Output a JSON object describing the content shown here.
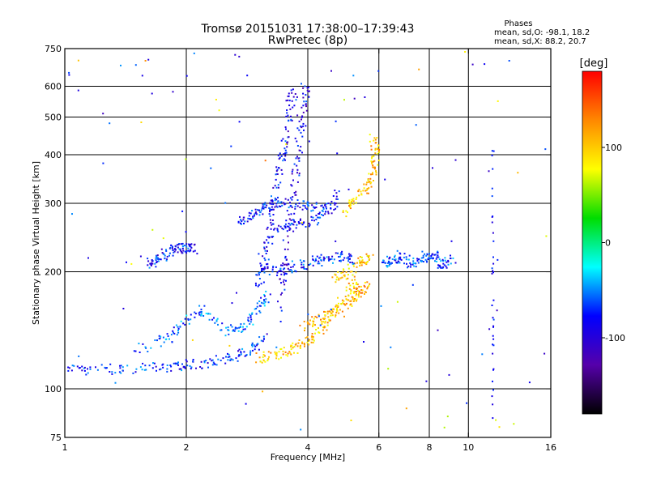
{
  "title": "Tromsø 20151031 17:38:00–17:39:43",
  "subtitle": "RwPretec (8p)",
  "stats": {
    "heading": "Phases",
    "line_o": "mean, sd,O: -98.1, 18.2",
    "line_x": "mean, sd,X:  88.2, 20.7"
  },
  "colorbar": {
    "unit": "[deg]",
    "range": [
      -180,
      180
    ],
    "ticks": [
      {
        "value": 100,
        "label": "100"
      },
      {
        "value": 0,
        "label": "0"
      },
      {
        "value": -100,
        "label": "-100"
      }
    ],
    "stops": [
      "#ff0000",
      "#ff8800",
      "#ffff00",
      "#00dd00",
      "#00ffff",
      "#0000ff",
      "#5500aa",
      "#000000"
    ]
  },
  "chart_data": {
    "type": "scatter",
    "xlabel": "Frequency [MHz]",
    "ylabel": "Stationary phase Virtual Height [km]",
    "xscale": "log",
    "yscale": "log",
    "xlim": [
      1,
      16
    ],
    "ylim": [
      75,
      750
    ],
    "grid": true,
    "x_ticks": [
      {
        "value": 1,
        "label": "1"
      },
      {
        "value": 2,
        "label": "2"
      },
      {
        "value": 4,
        "label": "4"
      },
      {
        "value": 6,
        "label": "6"
      },
      {
        "value": 8,
        "label": "8"
      },
      {
        "value": 10,
        "label": "10"
      },
      {
        "value": 16,
        "label": "16"
      }
    ],
    "x_grid": [
      2,
      4,
      6,
      8,
      10
    ],
    "y_ticks": [
      {
        "value": 75,
        "label": "75"
      },
      {
        "value": 100,
        "label": "100"
      },
      {
        "value": 200,
        "label": "200"
      },
      {
        "value": 300,
        "label": "300"
      },
      {
        "value": 400,
        "label": "400"
      },
      {
        "value": 500,
        "label": "500"
      },
      {
        "value": 600,
        "label": "600"
      },
      {
        "value": 750,
        "label": "750"
      }
    ],
    "y_grid": [
      100,
      200,
      300,
      400,
      500,
      600
    ],
    "traces": [
      {
        "points": [
          [
            1.0,
            112
          ],
          [
            1.2,
            112
          ],
          [
            1.5,
            113
          ],
          [
            1.8,
            114
          ],
          [
            2.0,
            115
          ],
          [
            2.3,
            117
          ],
          [
            2.6,
            120
          ],
          [
            2.9,
            125
          ],
          [
            3.1,
            135
          ]
        ],
        "phase": -95
      },
      {
        "points": [
          [
            1.5,
            125
          ],
          [
            1.8,
            135
          ],
          [
            2.0,
            150
          ],
          [
            2.2,
            160
          ],
          [
            2.5,
            140
          ],
          [
            2.8,
            145
          ],
          [
            3.0,
            160
          ],
          [
            3.2,
            175
          ]
        ],
        "phase": -80
      },
      {
        "points": [
          [
            3.0,
            120
          ],
          [
            3.3,
            122
          ],
          [
            3.6,
            125
          ],
          [
            3.9,
            130
          ],
          [
            4.3,
            140
          ],
          [
            4.6,
            155
          ],
          [
            5.0,
            175
          ],
          [
            5.3,
            190
          ]
        ],
        "phase": 110
      },
      {
        "points": [
          [
            3.9,
            145
          ],
          [
            4.3,
            152
          ],
          [
            4.7,
            160
          ],
          [
            5.1,
            170
          ],
          [
            5.4,
            178
          ],
          [
            5.6,
            185
          ]
        ],
        "phase": 115
      },
      {
        "points": [
          [
            4.6,
            190
          ],
          [
            5.0,
            200
          ],
          [
            5.4,
            210
          ],
          [
            5.8,
            220
          ]
        ],
        "phase": 105
      },
      {
        "points": [
          [
            4.8,
            280
          ],
          [
            5.2,
            300
          ],
          [
            5.6,
            330
          ],
          [
            5.8,
            360
          ],
          [
            5.9,
            400
          ],
          [
            5.8,
            440
          ]
        ],
        "phase": 110
      },
      {
        "points": [
          [
            3.3,
            260
          ],
          [
            3.7,
            265
          ],
          [
            4.1,
            270
          ],
          [
            4.5,
            290
          ],
          [
            4.8,
            320
          ]
        ],
        "phase": -100
      },
      {
        "points": [
          [
            2.7,
            270
          ],
          [
            2.9,
            280
          ],
          [
            3.1,
            290
          ],
          [
            3.3,
            300
          ],
          [
            3.6,
            300
          ],
          [
            4.0,
            295
          ],
          [
            4.5,
            290
          ]
        ],
        "phase": -100
      },
      {
        "points": [
          [
            3.0,
            185
          ],
          [
            3.1,
            205
          ],
          [
            3.2,
            240
          ],
          [
            3.3,
            300
          ],
          [
            3.4,
            360
          ],
          [
            3.5,
            420
          ],
          [
            3.6,
            520
          ],
          [
            3.7,
            600
          ]
        ],
        "phase": -105
      },
      {
        "points": [
          [
            3.4,
            150
          ],
          [
            3.5,
            200
          ],
          [
            3.6,
            260
          ],
          [
            3.7,
            330
          ],
          [
            3.8,
            420
          ],
          [
            3.9,
            520
          ],
          [
            4.0,
            600
          ]
        ],
        "phase": -110
      },
      {
        "points": [
          [
            3.2,
            200
          ],
          [
            3.6,
            205
          ],
          [
            4.0,
            210
          ],
          [
            4.4,
            215
          ],
          [
            4.8,
            220
          ],
          [
            5.2,
            215
          ]
        ],
        "phase": -95
      },
      {
        "points": [
          [
            1.6,
            210
          ],
          [
            1.7,
            215
          ],
          [
            1.8,
            225
          ],
          [
            1.9,
            230
          ],
          [
            2.0,
            230
          ],
          [
            2.1,
            228
          ]
        ],
        "phase": -100
      },
      {
        "points": [
          [
            6.2,
            210
          ],
          [
            6.5,
            215
          ],
          [
            6.8,
            220
          ],
          [
            7.2,
            210
          ],
          [
            7.8,
            215
          ],
          [
            8.2,
            220
          ],
          [
            8.6,
            210
          ],
          [
            9.2,
            215
          ]
        ],
        "phase": -90
      }
    ]
  }
}
